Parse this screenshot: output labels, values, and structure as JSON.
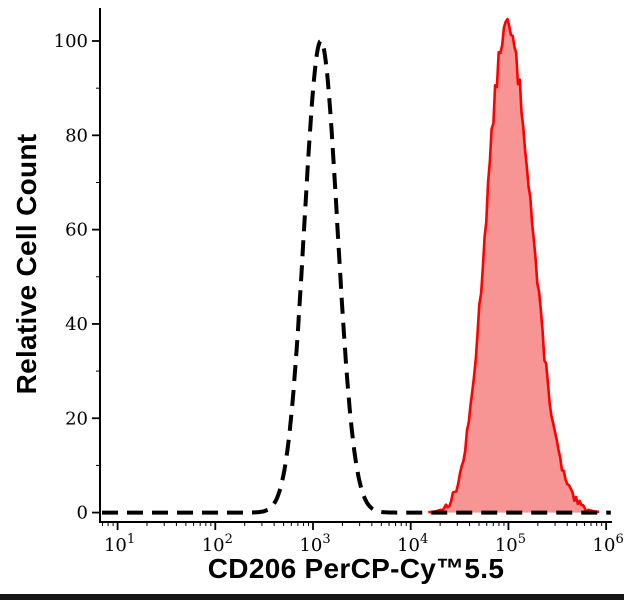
{
  "figure": {
    "background": "#ffffff",
    "bottom_bar_color": "#161616"
  },
  "chart_data": {
    "type": "area",
    "title": "",
    "xlabel": "CD206 PerCP-Cy™5.5",
    "ylabel": "Relative Cell Count",
    "x_scale": "log10",
    "xlim_log10": [
      0.82,
      6.06
    ],
    "ylim": [
      -2,
      107
    ],
    "x_ticks_exponents": [
      1,
      2,
      3,
      4,
      5,
      6
    ],
    "x_tick_labels": [
      "10^1",
      "10^2",
      "10^3",
      "10^4",
      "10^5",
      "10^6"
    ],
    "y_ticks": [
      0,
      20,
      40,
      60,
      80,
      100
    ],
    "y_minor_ticks": [
      10,
      30,
      50,
      70,
      90
    ],
    "axis_color": "#000000",
    "grid": false,
    "legend": "none",
    "series": [
      {
        "id": "cd206-stained",
        "name": "CD206 PerCP-Cy5.5 stained sample (red filled peak)",
        "peak_log10": 4.98,
        "peak_height": 103,
        "sigma_log10_left": 0.21,
        "sigma_log10_right": 0.26,
        "domain_log10": [
          4.18,
          5.94
        ],
        "step_log10": 0.018,
        "noise": 2.4,
        "seed": 13,
        "stroke": "#ff0000",
        "stroke_width": 2.6,
        "fill": "#f79595",
        "dash": ""
      },
      {
        "id": "isotype-control",
        "name": "unstained / isotype control (black dashed peak)",
        "peak_log10": 3.08,
        "peak_height": 100,
        "sigma_log10_left": 0.17,
        "sigma_log10_right": 0.17,
        "domain_log10": [
          0.84,
          6.05
        ],
        "step_log10": 0.008,
        "noise": 0,
        "seed": 1,
        "stroke": "#000000",
        "stroke_width": 4,
        "fill": "none",
        "dash": "16 9"
      }
    ]
  }
}
